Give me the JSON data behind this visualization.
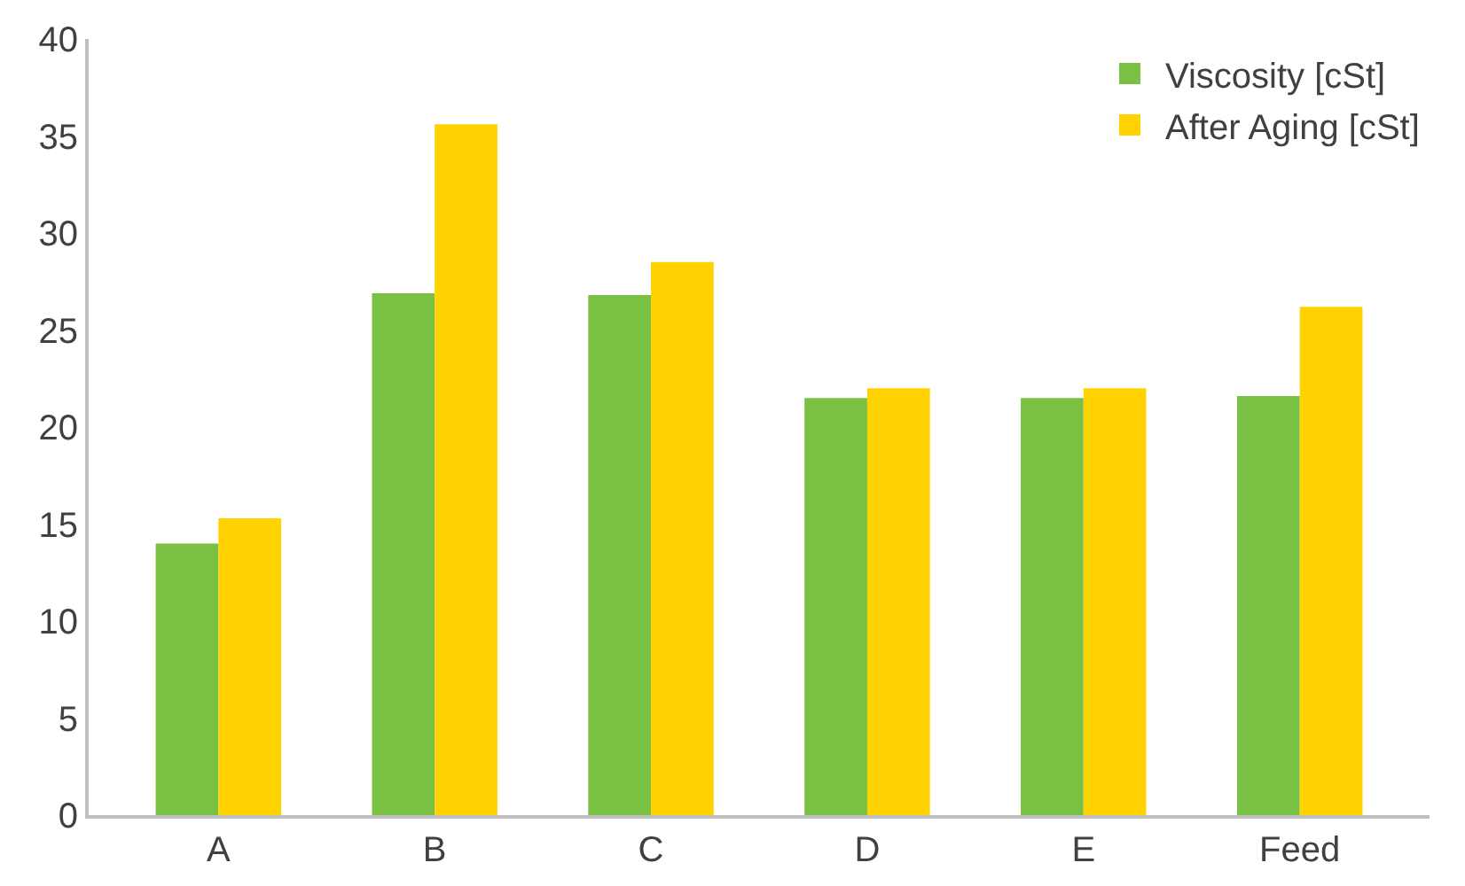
{
  "chart_data": {
    "type": "bar",
    "categories": [
      "A",
      "B",
      "C",
      "D",
      "E",
      "Feed"
    ],
    "series": [
      {
        "name": "Viscosity [cSt]",
        "color": "#7ac143",
        "values": [
          14,
          26.9,
          26.8,
          21.5,
          21.5,
          21.6
        ]
      },
      {
        "name": "After Aging [cSt]",
        "color": "#ffd200",
        "values": [
          15.3,
          35.6,
          28.5,
          22,
          22,
          26.2
        ]
      }
    ],
    "ylim": [
      0,
      40
    ],
    "yticks": [
      0,
      5,
      10,
      15,
      20,
      25,
      30,
      35,
      40
    ],
    "grid": false,
    "legend": "top right"
  }
}
